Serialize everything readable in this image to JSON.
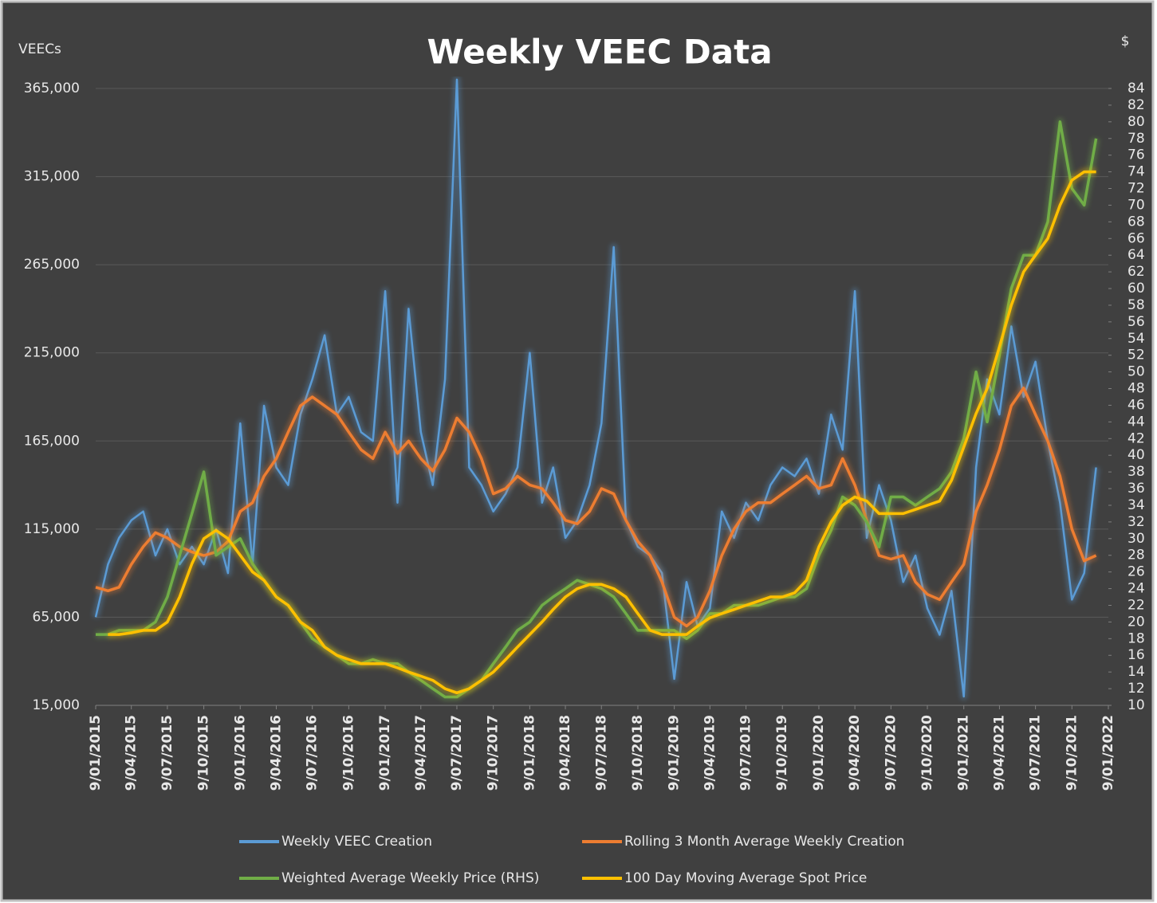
{
  "chart_data": {
    "type": "line",
    "title": "Weekly VEEC Data",
    "y_label": "VEECs",
    "y2_label": "$",
    "x": [
      "2015-01-09",
      "2015-02-09",
      "2015-03-09",
      "2015-04-09",
      "2015-05-09",
      "2015-06-09",
      "2015-07-09",
      "2015-08-09",
      "2015-09-09",
      "2015-10-09",
      "2015-11-09",
      "2015-12-09",
      "2016-01-09",
      "2016-02-09",
      "2016-03-09",
      "2016-04-09",
      "2016-05-09",
      "2016-06-09",
      "2016-07-09",
      "2016-08-09",
      "2016-09-09",
      "2016-10-09",
      "2016-11-09",
      "2016-12-09",
      "2017-01-09",
      "2017-02-09",
      "2017-03-09",
      "2017-04-09",
      "2017-05-09",
      "2017-06-09",
      "2017-07-09",
      "2017-08-09",
      "2017-09-09",
      "2017-10-09",
      "2017-11-09",
      "2017-12-09",
      "2018-01-09",
      "2018-02-09",
      "2018-03-09",
      "2018-04-09",
      "2018-05-09",
      "2018-06-09",
      "2018-07-09",
      "2018-08-09",
      "2018-09-09",
      "2018-10-09",
      "2018-11-09",
      "2018-12-09",
      "2019-01-09",
      "2019-02-09",
      "2019-03-09",
      "2019-04-09",
      "2019-05-09",
      "2019-06-09",
      "2019-07-09",
      "2019-08-09",
      "2019-09-09",
      "2019-10-09",
      "2019-11-09",
      "2019-12-09",
      "2020-01-09",
      "2020-02-09",
      "2020-03-09",
      "2020-04-09",
      "2020-05-09",
      "2020-06-09",
      "2020-07-09",
      "2020-08-09",
      "2020-09-09",
      "2020-10-09",
      "2020-11-09",
      "2020-12-09",
      "2021-01-09",
      "2021-02-09",
      "2021-03-09",
      "2021-04-09",
      "2021-05-09",
      "2021-06-09",
      "2021-07-09",
      "2021-08-09",
      "2021-09-09",
      "2021-10-09",
      "2021-11-09",
      "2021-12-09"
    ],
    "series": [
      {
        "name": "Weekly VEEC Creation",
        "color": "#5b9bd5",
        "values": [
          65000,
          95000,
          110000,
          120000,
          125000,
          100000,
          115000,
          95000,
          105000,
          95000,
          115000,
          90000,
          175000,
          95000,
          185000,
          150000,
          140000,
          180000,
          200000,
          225000,
          180000,
          190000,
          170000,
          165000,
          250000,
          130000,
          240000,
          170000,
          140000,
          200000,
          370000,
          150000,
          140000,
          125000,
          135000,
          150000,
          215000,
          130000,
          150000,
          110000,
          120000,
          140000,
          175000,
          275000,
          120000,
          105000,
          100000,
          90000,
          30000,
          85000,
          60000,
          70000,
          125000,
          110000,
          130000,
          120000,
          140000,
          150000,
          145000,
          155000,
          135000,
          180000,
          160000,
          250000,
          110000,
          140000,
          120000,
          85000,
          100000,
          70000,
          55000,
          80000,
          20000,
          150000,
          200000,
          180000,
          230000,
          190000,
          210000,
          165000,
          130000,
          75000,
          90000,
          150000
        ]
      },
      {
        "name": "Rolling 3 Month Average Weekly Creation",
        "color": "#ed7d31",
        "values": [
          82000,
          80000,
          82000,
          95000,
          105000,
          113000,
          110000,
          105000,
          102000,
          100000,
          102000,
          108000,
          125000,
          130000,
          145000,
          155000,
          170000,
          185000,
          190000,
          185000,
          180000,
          170000,
          160000,
          155000,
          170000,
          158000,
          165000,
          155000,
          148000,
          160000,
          178000,
          170000,
          155000,
          135000,
          138000,
          145000,
          140000,
          138000,
          130000,
          120000,
          118000,
          125000,
          138000,
          135000,
          120000,
          108000,
          100000,
          85000,
          65000,
          60000,
          65000,
          80000,
          100000,
          115000,
          125000,
          130000,
          130000,
          135000,
          140000,
          145000,
          138000,
          140000,
          155000,
          140000,
          120000,
          100000,
          98000,
          100000,
          85000,
          78000,
          75000,
          85000,
          95000,
          125000,
          140000,
          160000,
          185000,
          195000,
          180000,
          165000,
          145000,
          115000,
          97000,
          100000
        ]
      },
      {
        "name": "Weighted Average Weekly Price (RHS)",
        "color": "#70ad47",
        "axis": "y2",
        "values": [
          18.5,
          18.5,
          19,
          19,
          19,
          20,
          23,
          28,
          33,
          38,
          28,
          29,
          30,
          27,
          25,
          23,
          22,
          20,
          18,
          17,
          16,
          15,
          15,
          15.5,
          15,
          15,
          14,
          13,
          12,
          11,
          11,
          12,
          13,
          15,
          17,
          19,
          20,
          22,
          23,
          24,
          25,
          24.5,
          24,
          23,
          21,
          19,
          19,
          19,
          19,
          18,
          19,
          21,
          21,
          22,
          22,
          22,
          22.5,
          23,
          23,
          24,
          28,
          31,
          35,
          34,
          32,
          29,
          35,
          35,
          34,
          35,
          36,
          38,
          42,
          50,
          44,
          52,
          60,
          64,
          64,
          68,
          80,
          72,
          70,
          78
        ]
      },
      {
        "name": "100 Day Moving Average Spot Price",
        "color": "#ffc000",
        "axis": "y2",
        "values": [
          null,
          18.5,
          18.5,
          18.7,
          19,
          19,
          20,
          23,
          27,
          30,
          31,
          30,
          28,
          26,
          25,
          23,
          22,
          20,
          19,
          17,
          16,
          15.5,
          15,
          15,
          15,
          14.5,
          14,
          13.5,
          13,
          12,
          11.5,
          12,
          13,
          14,
          15.5,
          17,
          18.5,
          20,
          21.5,
          23,
          24,
          24.5,
          24.5,
          24,
          23,
          21,
          19,
          18.5,
          18.5,
          18.5,
          19.5,
          20.5,
          21,
          21.5,
          22,
          22.5,
          23,
          23,
          23.5,
          25,
          29,
          32,
          34,
          35,
          34.5,
          33,
          33,
          33,
          33.5,
          34,
          34.5,
          37,
          41,
          45,
          48,
          53,
          58,
          62,
          64,
          66,
          70,
          73,
          74,
          74
        ]
      }
    ],
    "xlim": [
      "2015-01-09",
      "2022-01-09"
    ],
    "xticks": [
      {
        "value": "2015-01-09",
        "label": "9/01/2015"
      },
      {
        "value": "2015-04-09",
        "label": "9/04/2015"
      },
      {
        "value": "2015-07-09",
        "label": "9/07/2015"
      },
      {
        "value": "2015-10-09",
        "label": "9/10/2015"
      },
      {
        "value": "2016-01-09",
        "label": "9/01/2016"
      },
      {
        "value": "2016-04-09",
        "label": "9/04/2016"
      },
      {
        "value": "2016-07-09",
        "label": "9/07/2016"
      },
      {
        "value": "2016-10-09",
        "label": "9/10/2016"
      },
      {
        "value": "2017-01-09",
        "label": "9/01/2017"
      },
      {
        "value": "2017-04-09",
        "label": "9/04/2017"
      },
      {
        "value": "2017-07-09",
        "label": "9/07/2017"
      },
      {
        "value": "2017-10-09",
        "label": "9/10/2017"
      },
      {
        "value": "2018-01-09",
        "label": "9/01/2018"
      },
      {
        "value": "2018-04-09",
        "label": "9/04/2018"
      },
      {
        "value": "2018-07-09",
        "label": "9/07/2018"
      },
      {
        "value": "2018-10-09",
        "label": "9/10/2018"
      },
      {
        "value": "2019-01-09",
        "label": "9/01/2019"
      },
      {
        "value": "2019-04-09",
        "label": "9/04/2019"
      },
      {
        "value": "2019-07-09",
        "label": "9/07/2019"
      },
      {
        "value": "2019-10-09",
        "label": "9/10/2019"
      },
      {
        "value": "2020-01-09",
        "label": "9/01/2020"
      },
      {
        "value": "2020-04-09",
        "label": "9/04/2020"
      },
      {
        "value": "2020-07-09",
        "label": "9/07/2020"
      },
      {
        "value": "2020-10-09",
        "label": "9/10/2020"
      },
      {
        "value": "2021-01-09",
        "label": "9/01/2021"
      },
      {
        "value": "2021-04-09",
        "label": "9/04/2021"
      },
      {
        "value": "2021-07-09",
        "label": "9/07/2021"
      },
      {
        "value": "2021-10-09",
        "label": "9/10/2021"
      },
      {
        "value": "2022-01-09",
        "label": "9/01/2022"
      }
    ],
    "ylim": [
      15000,
      365000
    ],
    "yticks": [
      {
        "value": 15000,
        "label": "15,000"
      },
      {
        "value": 65000,
        "label": "65,000"
      },
      {
        "value": 115000,
        "label": "115,000"
      },
      {
        "value": 165000,
        "label": "165,000"
      },
      {
        "value": 215000,
        "label": "215,000"
      },
      {
        "value": 265000,
        "label": "265,000"
      },
      {
        "value": 315000,
        "label": "315,000"
      },
      {
        "value": 365000,
        "label": "365,000"
      }
    ],
    "y2lim": [
      10,
      84
    ],
    "y2ticks": [
      10,
      12,
      14,
      16,
      18,
      20,
      22,
      24,
      26,
      28,
      30,
      32,
      34,
      36,
      38,
      40,
      42,
      44,
      46,
      48,
      50,
      52,
      54,
      56,
      58,
      60,
      62,
      64,
      66,
      68,
      70,
      72,
      74,
      76,
      78,
      80,
      82,
      84
    ],
    "grid": true
  }
}
